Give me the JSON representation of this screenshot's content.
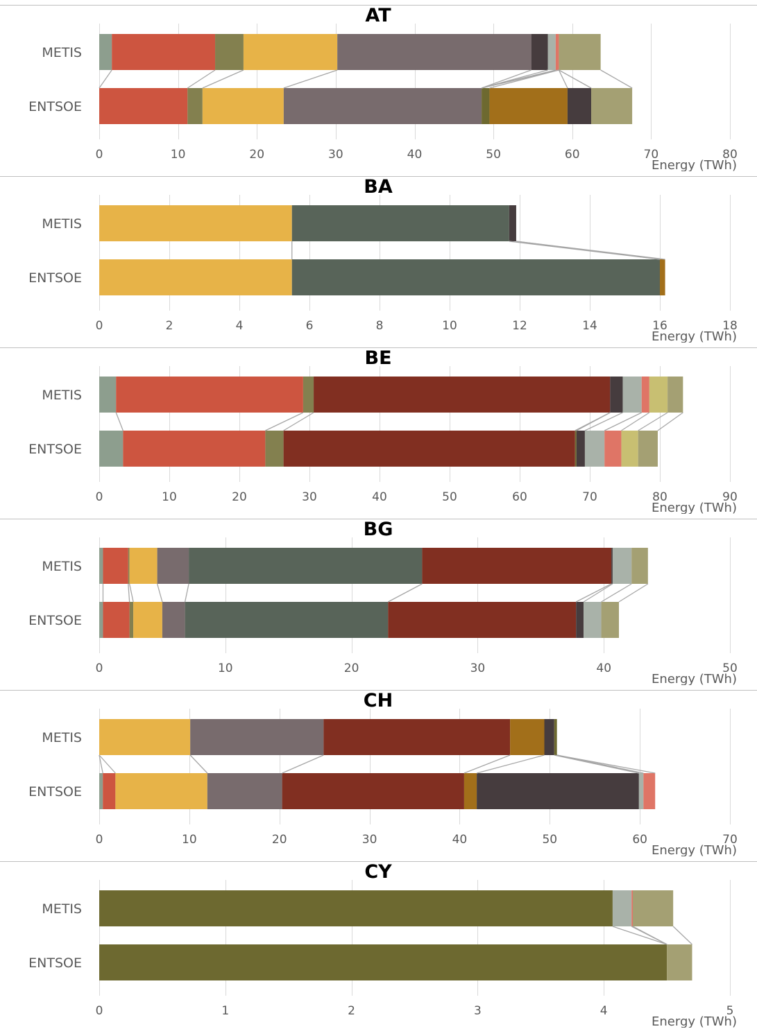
{
  "colors": {
    "c_sage": "#8d9e8e",
    "c_red": "#cd5540",
    "c_olive": "#83804f",
    "c_yellow": "#e7b348",
    "c_mauve": "#786b6d",
    "c_dark": "#463c3e",
    "c_lightgray": "#a9b2a9",
    "c_pink": "#df7566",
    "c_khaki": "#a4a073",
    "c_moss": "#6d6930",
    "c_brown": "#a26f1a",
    "c_slate": "#586459",
    "c_darkred": "#812f21",
    "c_lightyellow": "#c8bf72",
    "grid": "#d9d9d9",
    "connector": "#a6a6a6",
    "separator": "#bfbfbf"
  },
  "chart_data": [
    {
      "type": "bar",
      "stacked": true,
      "orientation": "horizontal",
      "title": "AT",
      "categories": [
        "METIS",
        "ENTSOE"
      ],
      "xlabel": "Energy (TWh)",
      "xlim": [
        0,
        80
      ],
      "xticks": [
        "0",
        "10",
        "20",
        "30",
        "40",
        "50",
        "60",
        "70",
        "80"
      ],
      "grid": true,
      "connectors": true,
      "segments": [
        {
          "color": "c_sage",
          "values": [
            1.6,
            0
          ]
        },
        {
          "color": "c_red",
          "values": [
            13.1,
            11.2
          ]
        },
        {
          "color": "c_olive",
          "values": [
            3.6,
            1.9
          ]
        },
        {
          "color": "c_yellow",
          "values": [
            11.9,
            10.3
          ]
        },
        {
          "color": "c_mauve",
          "values": [
            24.6,
            25.1
          ]
        },
        {
          "color": "c_dark",
          "values": [
            2.1,
            0
          ]
        },
        {
          "color": "c_lightgray",
          "values": [
            1.0,
            0
          ]
        },
        {
          "color": "c_pink",
          "values": [
            0.4,
            0
          ]
        },
        {
          "color": "c_moss",
          "values": [
            0,
            1.0
          ]
        },
        {
          "color": "c_brown",
          "values": [
            0,
            9.9
          ]
        },
        {
          "color": "c_dark",
          "values": [
            0,
            3.0
          ]
        },
        {
          "color": "c_khaki",
          "values": [
            5.3,
            5.2
          ]
        }
      ]
    },
    {
      "type": "bar",
      "stacked": true,
      "orientation": "horizontal",
      "title": "BA",
      "categories": [
        "METIS",
        "ENTSOE"
      ],
      "xlabel": "Energy (TWh)",
      "xlim": [
        0,
        18
      ],
      "xticks": [
        "0",
        "2",
        "4",
        "6",
        "8",
        "10",
        "12",
        "14",
        "16",
        "18"
      ],
      "grid": true,
      "connectors": true,
      "segments": [
        {
          "color": "c_yellow",
          "values": [
            5.5,
            5.5
          ]
        },
        {
          "color": "c_slate",
          "values": [
            6.2,
            10.5
          ]
        },
        {
          "color": "c_dark",
          "values": [
            0.2,
            0
          ]
        },
        {
          "color": "c_brown",
          "values": [
            0,
            0.15
          ]
        }
      ]
    },
    {
      "type": "bar",
      "stacked": true,
      "orientation": "horizontal",
      "title": "BE",
      "categories": [
        "METIS",
        "ENTSOE"
      ],
      "xlabel": "Energy (TWh)",
      "xlim": [
        0,
        90
      ],
      "xticks": [
        "0",
        "10",
        "20",
        "30",
        "40",
        "50",
        "60",
        "70",
        "80",
        "90"
      ],
      "grid": true,
      "connectors": true,
      "segments": [
        {
          "color": "c_sage",
          "values": [
            2.4,
            3.4
          ]
        },
        {
          "color": "c_red",
          "values": [
            26.7,
            20.3
          ]
        },
        {
          "color": "c_olive",
          "values": [
            1.5,
            2.6
          ]
        },
        {
          "color": "c_darkred",
          "values": [
            42.3,
            41.6
          ]
        },
        {
          "color": "c_moss",
          "values": [
            0,
            0.2
          ]
        },
        {
          "color": "c_dark",
          "values": [
            1.8,
            1.2
          ]
        },
        {
          "color": "c_lightgray",
          "values": [
            2.7,
            2.8
          ]
        },
        {
          "color": "c_pink",
          "values": [
            1.1,
            2.4
          ]
        },
        {
          "color": "c_lightyellow",
          "values": [
            2.6,
            2.4
          ]
        },
        {
          "color": "c_khaki",
          "values": [
            2.2,
            2.8
          ]
        }
      ]
    },
    {
      "type": "bar",
      "stacked": true,
      "orientation": "horizontal",
      "title": "BG",
      "categories": [
        "METIS",
        "ENTSOE"
      ],
      "xlabel": "Energy (TWh)",
      "xlim": [
        0,
        50
      ],
      "xticks": [
        "0",
        "10",
        "20",
        "30",
        "40",
        "50"
      ],
      "grid": true,
      "connectors": true,
      "segments": [
        {
          "color": "c_sage",
          "values": [
            0.3,
            0.3
          ]
        },
        {
          "color": "c_red",
          "values": [
            2.0,
            2.1
          ]
        },
        {
          "color": "c_olive",
          "values": [
            0.1,
            0.3
          ]
        },
        {
          "color": "c_yellow",
          "values": [
            2.2,
            2.3
          ]
        },
        {
          "color": "c_mauve",
          "values": [
            2.5,
            1.8
          ]
        },
        {
          "color": "c_slate",
          "values": [
            18.5,
            16.1
          ]
        },
        {
          "color": "c_darkred",
          "values": [
            15.0,
            14.9
          ]
        },
        {
          "color": "c_dark",
          "values": [
            0.1,
            0.6
          ]
        },
        {
          "color": "c_lightgray",
          "values": [
            1.5,
            1.4
          ]
        },
        {
          "color": "c_khaki",
          "values": [
            1.3,
            1.4
          ]
        }
      ]
    },
    {
      "type": "bar",
      "stacked": true,
      "orientation": "horizontal",
      "title": "CH",
      "categories": [
        "METIS",
        "ENTSOE"
      ],
      "xlabel": "Energy (TWh)",
      "xlim": [
        0,
        70
      ],
      "xticks": [
        "0",
        "10",
        "20",
        "30",
        "40",
        "50",
        "60",
        "70"
      ],
      "grid": true,
      "connectors": true,
      "segments": [
        {
          "color": "c_sage",
          "values": [
            0,
            0.4
          ]
        },
        {
          "color": "c_red",
          "values": [
            0,
            1.4
          ]
        },
        {
          "color": "c_yellow",
          "values": [
            10.1,
            10.2
          ]
        },
        {
          "color": "c_mauve",
          "values": [
            14.8,
            8.3
          ]
        },
        {
          "color": "c_darkred",
          "values": [
            20.7,
            20.2
          ]
        },
        {
          "color": "c_brown",
          "values": [
            3.8,
            1.4
          ]
        },
        {
          "color": "c_dark",
          "values": [
            1.1,
            18.0
          ]
        },
        {
          "color": "c_moss",
          "values": [
            0.3,
            0
          ]
        },
        {
          "color": "c_lightgray",
          "values": [
            0,
            0.5
          ]
        },
        {
          "color": "c_pink",
          "values": [
            0,
            1.3
          ]
        }
      ]
    },
    {
      "type": "bar",
      "stacked": true,
      "orientation": "horizontal",
      "title": "CY",
      "categories": [
        "METIS",
        "ENTSOE"
      ],
      "xlabel": "Energy (TWh)",
      "xlim": [
        0,
        5
      ],
      "xticks": [
        "0",
        "1",
        "2",
        "3",
        "4",
        "5"
      ],
      "grid": true,
      "connectors": true,
      "segments": [
        {
          "color": "c_moss",
          "values": [
            4.07,
            4.5
          ]
        },
        {
          "color": "c_lightgray",
          "values": [
            0.15,
            0
          ]
        },
        {
          "color": "c_pink",
          "values": [
            0.01,
            0
          ]
        },
        {
          "color": "c_khaki",
          "values": [
            0.32,
            0.2
          ]
        }
      ]
    }
  ]
}
